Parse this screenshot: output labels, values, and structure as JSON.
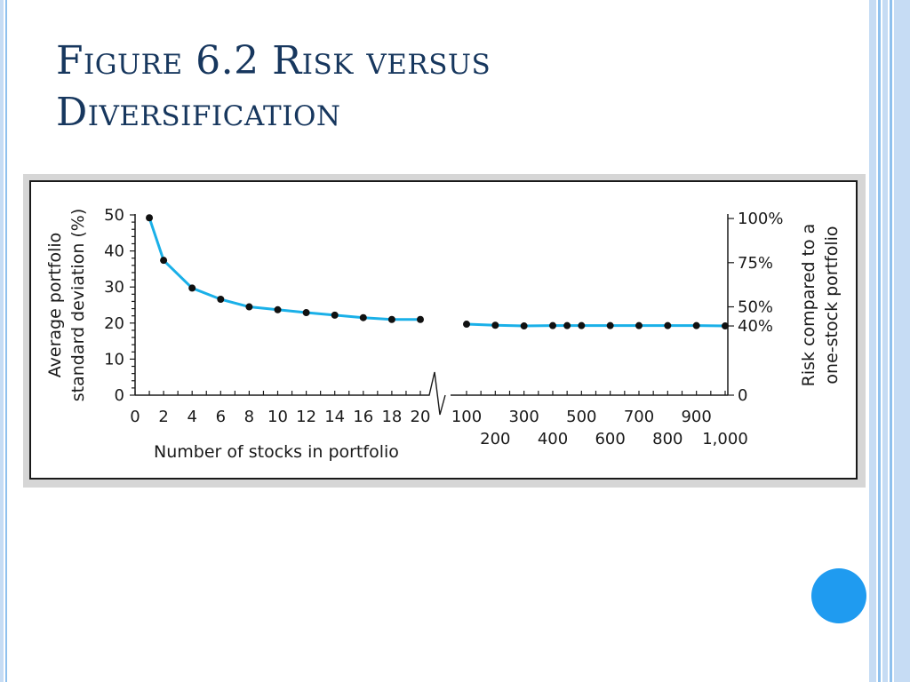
{
  "slide": {
    "title_line1": "Figure 6.2 Risk versus",
    "title_line2": "Diversification"
  },
  "colors": {
    "title": "#17375e",
    "line": "#1ab0e8",
    "marker": "#111111",
    "border_light": "#c6dcf4",
    "border_mid": "#8fc1ee",
    "nav_dot": "#1f9bf0"
  },
  "chart_data": {
    "type": "line",
    "title": "",
    "xlabel": "Number of stocks in portfolio",
    "ylabel_left": [
      "Average portfolio",
      "standard deviation (%)"
    ],
    "ylabel_right": [
      "Risk compared to a",
      "one-stock portfolio"
    ],
    "left_ylim": [
      0,
      50
    ],
    "left_yticks": [
      {
        "value": 0,
        "label": "0"
      },
      {
        "value": 10,
        "label": "10"
      },
      {
        "value": 20,
        "label": "20"
      },
      {
        "value": 30,
        "label": "30"
      },
      {
        "value": 40,
        "label": "40"
      },
      {
        "value": 50,
        "label": "50"
      }
    ],
    "right_yticks": [
      {
        "value": 0,
        "label": "0"
      },
      {
        "value": 19.2,
        "label": "40%"
      },
      {
        "value": 24.5,
        "label": "50%"
      },
      {
        "value": 36.75,
        "label": "75%"
      },
      {
        "value": 49,
        "label": "100%"
      }
    ],
    "x_segment1": {
      "range": [
        0,
        20
      ],
      "tick_labels": [
        "0",
        "2",
        "4",
        "6",
        "8",
        "10",
        "12",
        "14",
        "16",
        "18",
        "20"
      ]
    },
    "x_segment2": {
      "range": [
        100,
        1000
      ],
      "tick_labels_upper": [
        "100",
        "300",
        "500",
        "700",
        "900"
      ],
      "tick_labels_lower": [
        "200",
        "400",
        "600",
        "800",
        "1,000"
      ]
    },
    "axis_break": true,
    "grid": false,
    "series": [
      {
        "segment1": [
          {
            "x": 1,
            "y": 49.2
          },
          {
            "x": 2,
            "y": 37.4
          },
          {
            "x": 4,
            "y": 29.7
          },
          {
            "x": 6,
            "y": 26.6
          },
          {
            "x": 8,
            "y": 24.5
          },
          {
            "x": 10,
            "y": 23.7
          },
          {
            "x": 12,
            "y": 22.9
          },
          {
            "x": 14,
            "y": 22.2
          },
          {
            "x": 16,
            "y": 21.5
          },
          {
            "x": 18,
            "y": 21.0
          },
          {
            "x": 20,
            "y": 21.0
          }
        ],
        "segment2": [
          {
            "x": 100,
            "y": 19.7
          },
          {
            "x": 200,
            "y": 19.4
          },
          {
            "x": 300,
            "y": 19.2
          },
          {
            "x": 400,
            "y": 19.3
          },
          {
            "x": 450,
            "y": 19.3
          },
          {
            "x": 500,
            "y": 19.3
          },
          {
            "x": 600,
            "y": 19.3
          },
          {
            "x": 700,
            "y": 19.3
          },
          {
            "x": 800,
            "y": 19.3
          },
          {
            "x": 900,
            "y": 19.3
          },
          {
            "x": 1000,
            "y": 19.2
          }
        ]
      }
    ]
  }
}
